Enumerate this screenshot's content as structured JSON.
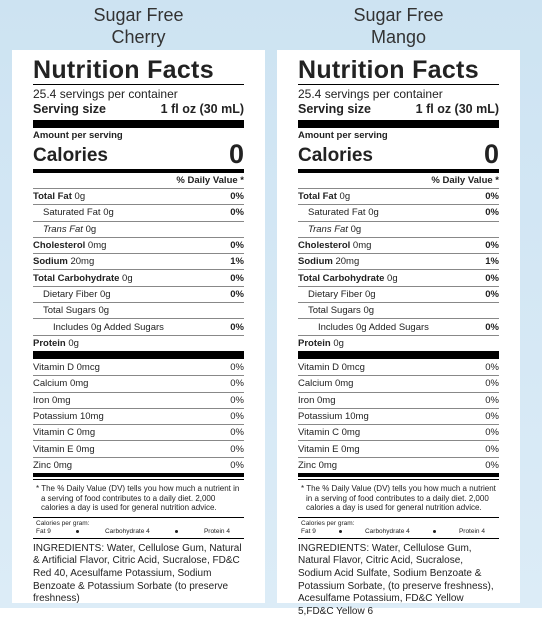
{
  "labels": [
    {
      "title_line1": "Sugar Free",
      "title_line2": "Cherry",
      "heading": "Nutrition Facts",
      "servings": "25.4 servings per container",
      "serving_size_label": "Serving size",
      "serving_size_value": "1 fl oz (30 mL)",
      "amount_per_serving": "Amount per serving",
      "calories_label": "Calories",
      "calories_value": "0",
      "dv_header": "% Daily Value *",
      "nutrients": [
        {
          "name": "Total Fat",
          "amount": "0g",
          "dv": "0%"
        },
        {
          "name": "Saturated Fat",
          "amount": "0g",
          "dv": "0%"
        },
        {
          "name": "Trans Fat",
          "amount": "0g"
        },
        {
          "name": "Cholesterol",
          "amount": "0mg",
          "dv": "0%"
        },
        {
          "name": "Sodium",
          "amount": "20mg",
          "dv": "1%"
        },
        {
          "name": "Total Carbohydrate",
          "amount": "0g",
          "dv": "0%"
        },
        {
          "name": "Dietary Fiber",
          "amount": "0g",
          "dv": "0%"
        },
        {
          "name": "Total Sugars",
          "amount": "0g"
        },
        {
          "name": "Includes 0g Added Sugars",
          "dv": "0%"
        },
        {
          "name": "Protein",
          "amount": "0g"
        }
      ],
      "vitamins": [
        {
          "name": "Vitamin D 0mcg",
          "dv": "0%"
        },
        {
          "name": "Calcium 0mg",
          "dv": "0%"
        },
        {
          "name": "Iron 0mg",
          "dv": "0%"
        },
        {
          "name": "Potassium 10mg",
          "dv": "0%"
        },
        {
          "name": "Vitamin C 0mg",
          "dv": "0%"
        },
        {
          "name": "Vitamin E 0mg",
          "dv": "0%"
        },
        {
          "name": "Zinc 0mg",
          "dv": "0%"
        }
      ],
      "footnote": "* The % Daily Value (DV) tells you how much a nutrient in a serving of food contributes to a daily diet. 2,000 calories a day is used for general nutrition advice.",
      "calories_per_gram": {
        "label": "Calories per gram:",
        "items": [
          "Fat 9",
          "Carbohydrate 4",
          "Protein 4"
        ]
      },
      "ingredients": "INGREDIENTS: Water, Cellulose Gum, Natural & Artificial Flavor, Citric Acid, Sucralose, FD&C Red 40, Acesulfame Potassium, Sodium Benzoate & Potassium Sorbate (to preserve freshness)"
    },
    {
      "title_line1": "Sugar Free",
      "title_line2": "Mango",
      "heading": "Nutrition Facts",
      "servings": "25.4 servings per container",
      "serving_size_label": "Serving size",
      "serving_size_value": "1 fl oz (30 mL)",
      "amount_per_serving": "Amount per serving",
      "calories_label": "Calories",
      "calories_value": "0",
      "dv_header": "% Daily Value *",
      "nutrients": [
        {
          "name": "Total Fat",
          "amount": "0g",
          "dv": "0%"
        },
        {
          "name": "Saturated Fat",
          "amount": "0g",
          "dv": "0%"
        },
        {
          "name": "Trans Fat",
          "amount": "0g"
        },
        {
          "name": "Cholesterol",
          "amount": "0mg",
          "dv": "0%"
        },
        {
          "name": "Sodium",
          "amount": "20mg",
          "dv": "1%"
        },
        {
          "name": "Total Carbohydrate",
          "amount": "0g",
          "dv": "0%"
        },
        {
          "name": "Dietary Fiber",
          "amount": "0g",
          "dv": "0%"
        },
        {
          "name": "Total Sugars",
          "amount": "0g"
        },
        {
          "name": "Includes 0g Added Sugars",
          "dv": "0%"
        },
        {
          "name": "Protein",
          "amount": "0g"
        }
      ],
      "vitamins": [
        {
          "name": "Vitamin D 0mcg",
          "dv": "0%"
        },
        {
          "name": "Calcium 0mg",
          "dv": "0%"
        },
        {
          "name": "Iron 0mg",
          "dv": "0%"
        },
        {
          "name": "Potassium 10mg",
          "dv": "0%"
        },
        {
          "name": "Vitamin C 0mg",
          "dv": "0%"
        },
        {
          "name": "Vitamin E 0mg",
          "dv": "0%"
        },
        {
          "name": "Zinc 0mg",
          "dv": "0%"
        }
      ],
      "footnote": "* The % Daily Value (DV) tells you how much a nutrient in a serving of food contributes to a daily diet. 2,000 calories a day is used for general nutrition advice.",
      "calories_per_gram": {
        "label": "Calories per gram:",
        "items": [
          "Fat 9",
          "Carbohydrate 4",
          "Protein 4"
        ]
      },
      "ingredients": "INGREDIENTS: Water, Cellulose Gum, Natural Flavor, Citric Acid, Sucralose, Sodium Acid Sulfate, Sodium Benzoate & Potassium Sorbate, (to preserve freshness), Acesulfame Potassium, FD&C Yellow 5,FD&C Yellow 6"
    }
  ]
}
